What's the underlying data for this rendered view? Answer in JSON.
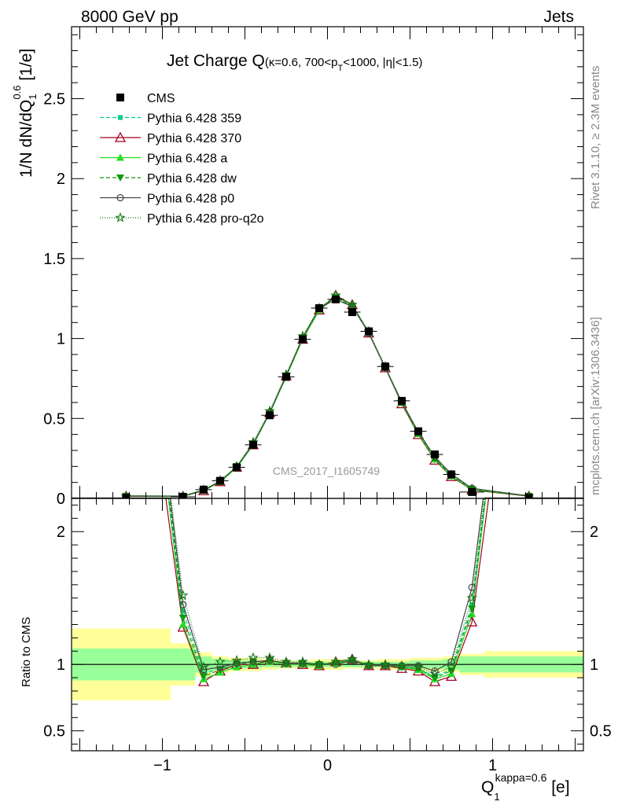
{
  "header": {
    "energy_label": "8000 GeV pp",
    "category_label": "Jets",
    "rivet_label": "Rivet 3.1.10, ≥ 2.3M events",
    "mcplots_label": "mcplots.cern.ch [arXiv:1306.3436]",
    "analysis_label": "CMS_2017_I1605749"
  },
  "title": {
    "main": "Jet Charge Q",
    "sub": "(κ=0.6, 700<p",
    "sub_T": "T",
    "sub_rest": "<1000, |η|<1.5)"
  },
  "axes": {
    "y_main_a": "1/N dN/dQ",
    "y_main_sub": "1",
    "y_main_sup": "0.6",
    "y_main_unit": " [1/e]",
    "y_ratio": "Ratio to CMS",
    "x_main": "Q",
    "x_sub": "1",
    "x_sup": "kappa=0.6",
    "x_unit": " [e]"
  },
  "colors": {
    "cms": "#000000",
    "p359": "#00cc88",
    "p370": "#a00020",
    "pa": "#22dd22",
    "pdw": "#119911",
    "pp0": "#444444",
    "pq2o": "#117711",
    "band_inner": "#99ff99",
    "band_outer": "#ffff99"
  },
  "legend": [
    {
      "label": "CMS",
      "key": "cms"
    },
    {
      "label": "Pythia 6.428 359",
      "key": "p359"
    },
    {
      "label": "Pythia 6.428 370",
      "key": "p370"
    },
    {
      "label": "Pythia 6.428 a",
      "key": "pa"
    },
    {
      "label": "Pythia 6.428 dw",
      "key": "pdw"
    },
    {
      "label": "Pythia 6.428 p0",
      "key": "pp0"
    },
    {
      "label": "Pythia 6.428 pro-q2o",
      "key": "pq2o"
    }
  ],
  "chart_data": {
    "type": "line",
    "xlim": [
      -1.55,
      1.55
    ],
    "main": {
      "ylim": [
        0,
        2.95
      ],
      "yticks": [
        0,
        0.5,
        1,
        1.5,
        2,
        2.5
      ],
      "yticklabels": [
        "0",
        "0.5",
        "1",
        "1.5",
        "2",
        "2.5"
      ]
    },
    "ratio": {
      "ylim": [
        0.35,
        2.25
      ],
      "yticks": [
        0.5,
        1,
        2
      ],
      "yticklabels": [
        "0.5",
        "1",
        "2"
      ]
    },
    "xticks": [
      -1,
      0,
      1
    ],
    "xticklabels": [
      "−1",
      "0",
      "1"
    ],
    "bins_lo": [
      -1.55,
      -0.95,
      -0.8,
      -0.7,
      -0.6,
      -0.5,
      -0.4,
      -0.3,
      -0.2,
      -0.1,
      0.0,
      0.1,
      0.2,
      0.3,
      0.4,
      0.5,
      0.6,
      0.7,
      0.8,
      0.95
    ],
    "bins_hi": [
      -0.95,
      -0.8,
      -0.7,
      -0.6,
      -0.5,
      -0.4,
      -0.3,
      -0.2,
      -0.1,
      0.0,
      0.1,
      0.2,
      0.3,
      0.4,
      0.5,
      0.6,
      0.7,
      0.8,
      0.95,
      1.55
    ],
    "x": [
      -1.22,
      -0.875,
      -0.75,
      -0.65,
      -0.55,
      -0.45,
      -0.35,
      -0.25,
      -0.15,
      -0.05,
      0.05,
      0.15,
      0.25,
      0.35,
      0.45,
      0.55,
      0.65,
      0.75,
      0.875,
      1.22
    ],
    "cms": [
      0.003,
      0.01,
      0.055,
      0.11,
      0.195,
      0.335,
      0.52,
      0.76,
      0.995,
      1.19,
      1.245,
      1.165,
      1.045,
      0.825,
      0.61,
      0.42,
      0.275,
      0.15,
      0.04,
      0.003
    ],
    "band_inner": [
      0.12,
      0.12,
      0.06,
      0.04,
      0.03,
      0.03,
      0.02,
      0.02,
      0.02,
      0.02,
      0.02,
      0.02,
      0.02,
      0.02,
      0.02,
      0.03,
      0.03,
      0.04,
      0.06,
      0.06
    ],
    "band_outer": [
      0.27,
      0.16,
      0.09,
      0.06,
      0.05,
      0.05,
      0.04,
      0.03,
      0.03,
      0.04,
      0.04,
      0.03,
      0.03,
      0.04,
      0.04,
      0.05,
      0.05,
      0.06,
      0.08,
      0.1
    ],
    "series": [
      {
        "name": "Pythia 6.428 359",
        "key": "p359",
        "marker": "square-small",
        "dash": "5,3",
        "ratio": [
          5.0,
          1.4,
          0.93,
          0.97,
          1.01,
          1.02,
          1.03,
          1.01,
          1.01,
          1.0,
          1.01,
          1.03,
          0.99,
          0.99,
          0.98,
          0.97,
          0.91,
          0.96,
          1.45,
          5.0
        ]
      },
      {
        "name": "Pythia 6.428 370",
        "key": "p370",
        "marker": "triangle-open",
        "dash": "",
        "ratio": [
          4.5,
          1.28,
          0.87,
          0.95,
          1.0,
          1.0,
          1.03,
          1.01,
          1.0,
          0.99,
          1.02,
          1.04,
          0.99,
          0.99,
          0.97,
          0.95,
          0.87,
          0.91,
          1.32,
          4.5
        ]
      },
      {
        "name": "Pythia 6.428 a",
        "key": "pa",
        "marker": "triangle",
        "dash": "",
        "ratio": [
          5.0,
          1.3,
          0.89,
          0.94,
          0.98,
          1.0,
          1.02,
          1.0,
          1.0,
          0.99,
          1.01,
          1.04,
          0.99,
          0.99,
          0.98,
          0.96,
          0.89,
          0.93,
          1.38,
          5.0
        ]
      },
      {
        "name": "Pythia 6.428 dw",
        "key": "pdw",
        "marker": "triangle-down",
        "dash": "5,3",
        "ratio": [
          5.0,
          1.35,
          0.91,
          0.96,
          1.0,
          1.02,
          1.03,
          1.01,
          1.01,
          1.0,
          1.01,
          1.03,
          0.99,
          0.99,
          0.98,
          0.97,
          0.9,
          0.95,
          1.42,
          5.0
        ]
      },
      {
        "name": "Pythia 6.428 p0",
        "key": "pp0",
        "marker": "circle-open",
        "dash": "",
        "ratio": [
          5.0,
          1.45,
          0.96,
          0.98,
          1.01,
          1.02,
          1.03,
          1.01,
          1.01,
          1.0,
          1.0,
          1.03,
          0.99,
          0.99,
          0.99,
          0.99,
          0.95,
          1.02,
          1.58,
          5.0
        ]
      },
      {
        "name": "Pythia 6.428 pro-q2o",
        "key": "pq2o",
        "marker": "star-open",
        "dash": "1,2",
        "ratio": [
          5.0,
          1.52,
          0.98,
          1.02,
          1.03,
          1.05,
          1.05,
          1.02,
          1.02,
          1.0,
          1.02,
          1.04,
          1.0,
          1.0,
          0.99,
          0.98,
          0.93,
          0.98,
          1.5,
          5.0
        ]
      }
    ]
  }
}
